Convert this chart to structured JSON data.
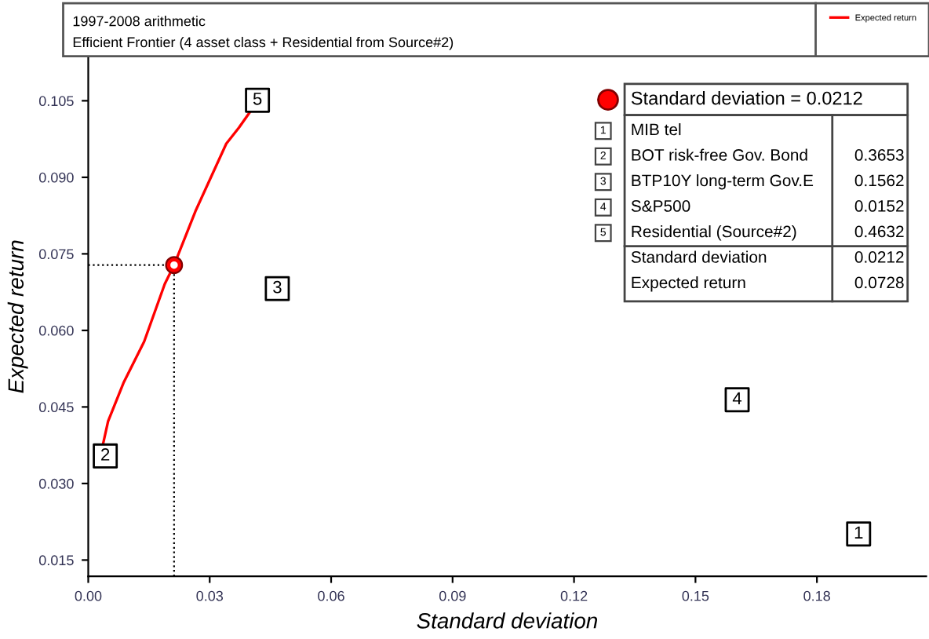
{
  "chart_data": {
    "type": "line",
    "title": "1997-2008 arithmetic",
    "subtitle": "Efficient Frontier (4 asset class + Residential from Source#2)",
    "xlabel": "Standard deviation",
    "ylabel": "Expected return",
    "xlim": [
      0,
      0.207
    ],
    "ylim": [
      0.0118,
      0.1136
    ],
    "xticks": [
      {
        "value": 0,
        "label": "0.00"
      },
      {
        "value": 0.03,
        "label": "0.03"
      },
      {
        "value": 0.06,
        "label": "0.06"
      },
      {
        "value": 0.09,
        "label": "0.09"
      },
      {
        "value": 0.12,
        "label": "0.12"
      },
      {
        "value": 0.15,
        "label": "0.15"
      },
      {
        "value": 0.18,
        "label": "0.18"
      }
    ],
    "yticks": [
      {
        "value": 0.015,
        "label": "0.015"
      },
      {
        "value": 0.03,
        "label": "0.030"
      },
      {
        "value": 0.045,
        "label": "0.045"
      },
      {
        "value": 0.06,
        "label": "0.060"
      },
      {
        "value": 0.075,
        "label": "0.075"
      },
      {
        "value": 0.09,
        "label": "0.090"
      },
      {
        "value": 0.105,
        "label": "0.105"
      }
    ],
    "grid": false,
    "legend": "top right",
    "series": [
      {
        "name": "Expected return",
        "color": "#ff0000",
        "marker": "none",
        "line_style": "solid",
        "x": [
          0.0037,
          0.0049,
          0.0087,
          0.0138,
          0.0189,
          0.0212,
          0.0265,
          0.0341,
          0.0372,
          0.0404
        ],
        "values": [
          0.0379,
          0.0422,
          0.0497,
          0.0578,
          0.0691,
          0.0728,
          0.0834,
          0.0966,
          0.0997,
          0.1033
        ]
      },
      {
        "type": "scatter",
        "color": "#000000",
        "marker": "square",
        "x": [
          0.1903,
          0.0042,
          0.0467,
          0.1603,
          0.0418
        ],
        "values": [
          0.0201,
          0.0354,
          0.0682,
          0.0464,
          0.1051
        ]
      },
      {
        "type": "scatter",
        "color": "#ff0000",
        "marker": "circle",
        "x": [
          0.0212
        ],
        "values": [
          0.0728
        ]
      }
    ],
    "ref_lines": [
      {
        "axis": "x",
        "value": 0.0212,
        "line_style": "dotted",
        "color": "#000000"
      },
      {
        "axis": "y",
        "value": 0.0728,
        "line_style": "dotted",
        "color": "#000000"
      }
    ],
    "annotations": [
      {
        "text": "1",
        "x": 0.1903,
        "y": 0.0201
      },
      {
        "text": "2",
        "x": 0.0042,
        "y": 0.0354
      },
      {
        "text": "3",
        "x": 0.0467,
        "y": 0.0682
      },
      {
        "text": "4",
        "x": 0.1603,
        "y": 0.0464
      },
      {
        "text": "5",
        "x": 0.0418,
        "y": 0.1051
      },
      "Standard deviation = 0.0212",
      "MIB tel",
      "BOT risk-free Gov. Bond",
      "BTP10Y long-term Gov.E",
      "S&P500",
      "Residential (Source#2)",
      "Standard deviation",
      "Expected return",
      "0.3653",
      "0.1562",
      "0.0152",
      "0.4632",
      "0.0212",
      "0.0728"
    ]
  }
}
